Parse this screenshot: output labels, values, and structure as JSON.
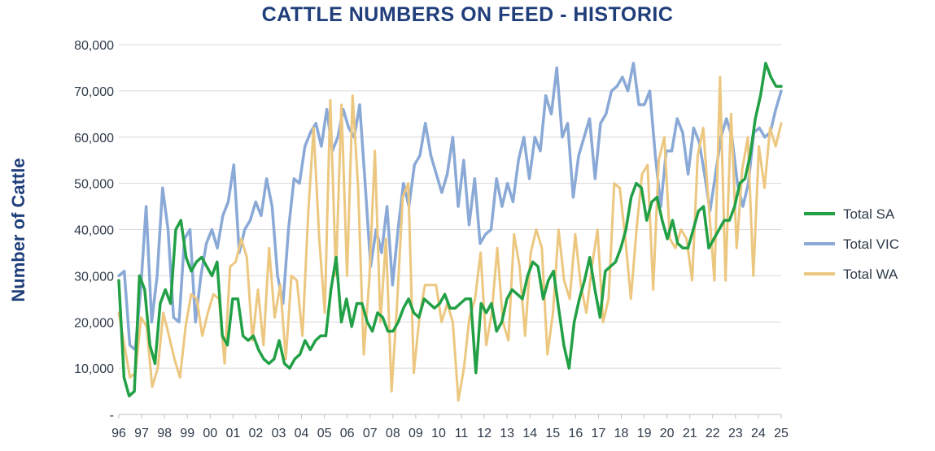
{
  "chart_data": {
    "type": "line",
    "title": "CATTLE NUMBERS ON FEED - HISTORIC",
    "xlabel": "",
    "ylabel": "Number of Cattle",
    "ylim": [
      0,
      80000
    ],
    "yticks": [
      {
        "value": 0,
        "label": "-"
      },
      {
        "value": 10000,
        "label": "10,000"
      },
      {
        "value": 20000,
        "label": "20,000"
      },
      {
        "value": 30000,
        "label": "30,000"
      },
      {
        "value": 40000,
        "label": "40,000"
      },
      {
        "value": 50000,
        "label": "50,000"
      },
      {
        "value": 60000,
        "label": "60,000"
      },
      {
        "value": 70000,
        "label": "70,000"
      },
      {
        "value": 80000,
        "label": "80,000"
      }
    ],
    "xticks": [
      "96",
      "97",
      "98",
      "99",
      "00",
      "01",
      "02",
      "03",
      "04",
      "05",
      "06",
      "07",
      "08",
      "09",
      "10",
      "11",
      "12",
      "13",
      "14",
      "15",
      "16",
      "17",
      "18",
      "19",
      "20",
      "21",
      "22",
      "23",
      "24",
      "25"
    ],
    "grid": true,
    "legend": "right",
    "series": [
      {
        "name": "Total SA",
        "color": "#22a046",
        "values": [
          29000,
          8000,
          4000,
          5000,
          30000,
          27000,
          15000,
          11000,
          24000,
          27000,
          24000,
          40000,
          42000,
          34000,
          31000,
          33000,
          34000,
          32000,
          30000,
          33000,
          17000,
          15000,
          25000,
          25000,
          17000,
          16000,
          17000,
          14000,
          12000,
          11000,
          12000,
          16000,
          11000,
          10000,
          12000,
          13000,
          16000,
          14000,
          16000,
          17000,
          17000,
          27000,
          34000,
          20000,
          25000,
          19000,
          24000,
          24000,
          20000,
          18000,
          22000,
          21000,
          18000,
          18000,
          20000,
          23000,
          25000,
          22000,
          21000,
          25000,
          24000,
          23000,
          24000,
          26000,
          23000,
          23000,
          24000,
          25000,
          25000,
          9000,
          24000,
          22000,
          24000,
          18000,
          20000,
          25000,
          27000,
          26000,
          25000,
          30000,
          33000,
          32000,
          25000,
          29000,
          31000,
          23000,
          15000,
          10000,
          20000,
          25000,
          29000,
          34000,
          27000,
          21000,
          31000,
          32000,
          33000,
          36000,
          40000,
          47000,
          50000,
          49000,
          42000,
          46000,
          47000,
          42000,
          38000,
          42000,
          37000,
          36000,
          36000,
          40000,
          44000,
          45000,
          36000,
          38000,
          40000,
          42000,
          42000,
          45000,
          50000,
          51000,
          56000,
          64000,
          69000,
          76000,
          73000,
          71000,
          71000
        ]
      },
      {
        "name": "Total VIC",
        "color": "#8aa9d6",
        "values": [
          30000,
          31000,
          15000,
          14000,
          27000,
          45000,
          20000,
          30000,
          49000,
          40000,
          21000,
          20000,
          38000,
          40000,
          20000,
          30000,
          37000,
          40000,
          36000,
          43000,
          46000,
          54000,
          35000,
          40000,
          42000,
          46000,
          43000,
          51000,
          45000,
          30000,
          24000,
          40000,
          51000,
          50000,
          58000,
          61000,
          63000,
          58000,
          66000,
          57000,
          60000,
          66000,
          62000,
          60000,
          67000,
          50000,
          32000,
          40000,
          35000,
          45000,
          28000,
          40000,
          50000,
          45000,
          54000,
          56000,
          63000,
          56000,
          52000,
          48000,
          52000,
          60000,
          45000,
          55000,
          41000,
          51000,
          37000,
          39000,
          40000,
          51000,
          45000,
          50000,
          46000,
          55000,
          60000,
          51000,
          60000,
          57000,
          69000,
          65000,
          75000,
          60000,
          63000,
          47000,
          56000,
          60000,
          64000,
          51000,
          63000,
          65000,
          70000,
          71000,
          73000,
          70000,
          76000,
          67000,
          67000,
          70000,
          56000,
          45000,
          57000,
          57000,
          64000,
          61000,
          52000,
          62000,
          59000,
          52000,
          44000,
          52000,
          60000,
          64000,
          60000,
          50000,
          45000,
          50000,
          61000,
          62000,
          60000,
          61000,
          66000,
          70000
        ]
      },
      {
        "name": "Total WA",
        "color": "#ecc780",
        "values": [
          22000,
          15000,
          8000,
          9000,
          21000,
          19000,
          6000,
          10000,
          22000,
          17000,
          12000,
          8000,
          19000,
          26000,
          25000,
          17000,
          22000,
          26000,
          25000,
          11000,
          32000,
          33000,
          38000,
          34000,
          16000,
          27000,
          15000,
          36000,
          21000,
          28000,
          12000,
          30000,
          29000,
          17000,
          43000,
          62000,
          38000,
          22000,
          68000,
          30000,
          67000,
          30000,
          69000,
          49000,
          13000,
          29000,
          57000,
          20000,
          38000,
          5000,
          24000,
          47000,
          50000,
          9000,
          21000,
          28000,
          28000,
          28000,
          20000,
          24000,
          20000,
          3000,
          10000,
          21000,
          25000,
          35000,
          15000,
          22000,
          36000,
          20000,
          16000,
          39000,
          32000,
          17000,
          35000,
          40000,
          36000,
          13000,
          22000,
          40000,
          29000,
          25000,
          39000,
          28000,
          22000,
          32000,
          40000,
          20000,
          25000,
          50000,
          49000,
          38000,
          25000,
          40000,
          52000,
          54000,
          27000,
          55000,
          60000,
          38000,
          36000,
          40000,
          38000,
          29000,
          56000,
          62000,
          45000,
          29000,
          73000,
          29000,
          65000,
          36000,
          53000,
          60000,
          30000,
          58000,
          49000,
          62000,
          58000,
          63000
        ]
      }
    ]
  }
}
